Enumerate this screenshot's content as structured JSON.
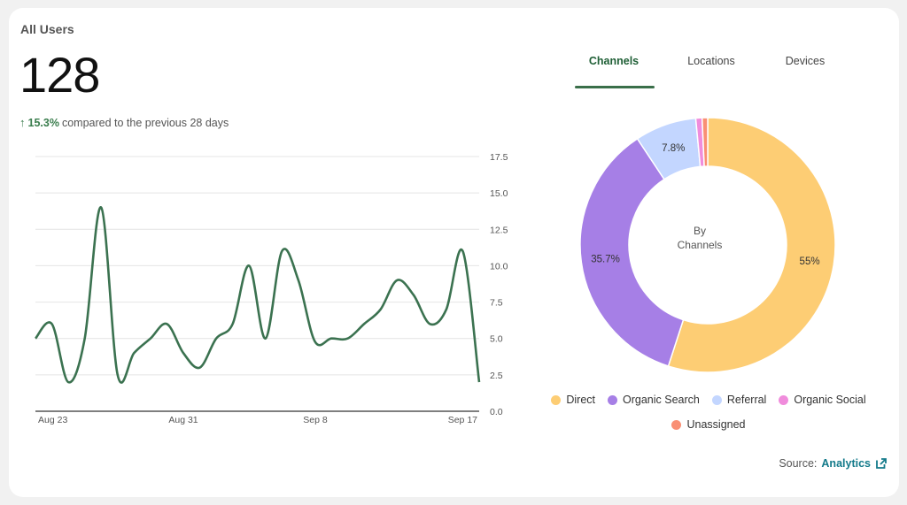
{
  "card": {
    "title": "All Users",
    "total": "128",
    "delta_pct": "15.3%",
    "delta_text": "compared to the previous 28 days"
  },
  "tabs": [
    {
      "label": "Channels",
      "active": true
    },
    {
      "label": "Locations",
      "active": false
    },
    {
      "label": "Devices",
      "active": false
    }
  ],
  "chart_data": [
    {
      "type": "line",
      "title": "",
      "xlabel": "",
      "ylabel": "",
      "x_tick_labels": [
        "Aug 23",
        "Aug 31",
        "Sep 8",
        "Sep 17"
      ],
      "y_ticks": [
        0.0,
        2.5,
        5.0,
        7.5,
        10.0,
        12.5,
        15.0,
        17.5
      ],
      "y_tick_labels": [
        "0.0",
        "2.5",
        "5.0",
        "7.5",
        "10.0",
        "12.5",
        "15.0",
        "17.5"
      ],
      "ylim": [
        0,
        17.5
      ],
      "grid": true,
      "y_axis_side": "right",
      "color": "#3b7250",
      "series": [
        {
          "values": [
            5,
            6,
            2,
            5,
            14,
            2.5,
            4,
            5,
            6,
            4,
            3,
            5,
            6,
            10,
            5,
            11,
            9,
            4.8,
            5,
            5,
            6,
            7,
            9,
            8,
            6,
            7,
            11,
            2
          ]
        }
      ]
    },
    {
      "type": "pie",
      "subtitle": "By\nChannels",
      "donut": true,
      "labels": [
        "Direct",
        "Organic Search",
        "Referral",
        "Organic Social",
        "Unassigned"
      ],
      "values": [
        55,
        35.7,
        7.8,
        0.8,
        0.7
      ],
      "data_labels": [
        "55%",
        "35.7%",
        "7.8%",
        "",
        ""
      ],
      "colors": [
        "#fdcd74",
        "#a67fe6",
        "#c3d6ff",
        "#f08cdc",
        "#f98f74"
      ],
      "legend_position": "bottom"
    }
  ],
  "center": {
    "line1": "By",
    "line2": "Channels"
  },
  "source": {
    "prefix": "Source:",
    "link": "Analytics"
  }
}
